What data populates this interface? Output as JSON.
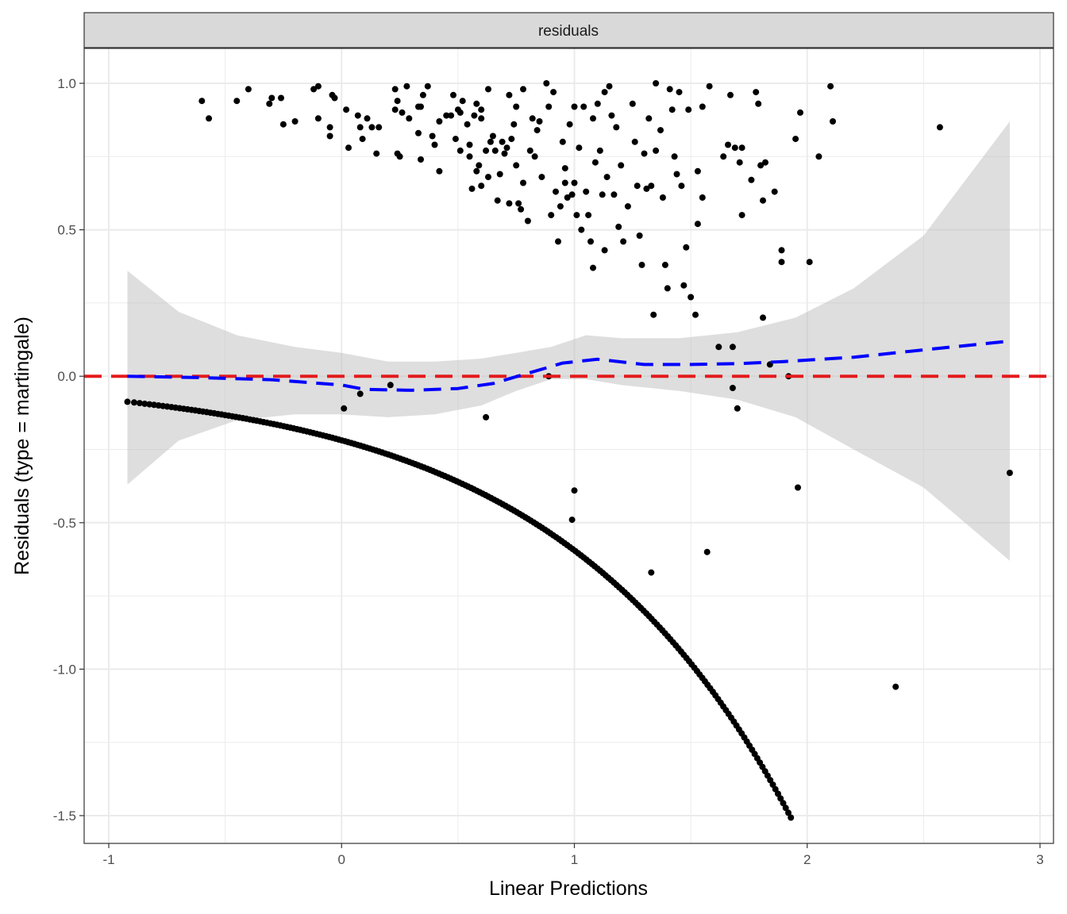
{
  "chart_data": {
    "type": "scatter",
    "title": "",
    "facet_label": "residuals",
    "xlabel": "Linear Predictions",
    "ylabel": "Residuals (type = martingale)",
    "xlim": [
      -1.1,
      3.05
    ],
    "ylim": [
      -1.6,
      1.12
    ],
    "x_ticks": [
      -1,
      0,
      1,
      2,
      3
    ],
    "x_tick_labels": [
      "-1",
      "0",
      "1",
      "2",
      "3"
    ],
    "y_ticks": [
      -1.5,
      -1.0,
      -0.5,
      0.0,
      0.5,
      1.0
    ],
    "y_tick_labels": [
      "-1.5",
      "-1.0",
      "-0.5",
      "0.0",
      "0.5",
      "1.0"
    ],
    "grid": true,
    "legend": "none",
    "colors": {
      "points": "#000000",
      "reference_line": "#e41a1c",
      "smooth_line": "#0000ff",
      "confidence_band": "#bebebe",
      "grid": "#ebebeb",
      "strip_fill": "#d9d9d9"
    },
    "reference_line": {
      "y": 0,
      "style": "dashed"
    },
    "smooth_curve": {
      "x": [
        -0.92,
        -0.6,
        -0.3,
        0.0,
        0.1,
        0.3,
        0.5,
        0.65,
        0.8,
        0.95,
        1.1,
        1.3,
        1.5,
        1.7,
        1.9,
        2.2,
        2.5,
        2.87
      ],
      "y": [
        0.0,
        -0.005,
        -0.012,
        -0.03,
        -0.045,
        -0.048,
        -0.042,
        -0.025,
        0.01,
        0.045,
        0.058,
        0.04,
        0.04,
        0.043,
        0.05,
        0.065,
        0.09,
        0.12
      ]
    },
    "confidence_band": {
      "x": [
        -0.92,
        -0.7,
        -0.45,
        -0.2,
        0.0,
        0.2,
        0.4,
        0.6,
        0.75,
        0.9,
        1.05,
        1.2,
        1.45,
        1.7,
        1.95,
        2.2,
        2.5,
        2.87
      ],
      "upper": [
        0.36,
        0.22,
        0.14,
        0.1,
        0.08,
        0.05,
        0.05,
        0.06,
        0.08,
        0.1,
        0.14,
        0.13,
        0.13,
        0.15,
        0.2,
        0.3,
        0.48,
        0.87
      ],
      "lower": [
        -0.37,
        -0.22,
        -0.15,
        -0.13,
        -0.13,
        -0.14,
        -0.13,
        -0.1,
        -0.05,
        -0.01,
        -0.01,
        -0.03,
        -0.05,
        -0.08,
        -0.14,
        -0.25,
        -0.38,
        -0.63
      ]
    },
    "points": {
      "lower_curve": {
        "x_min": -0.92,
        "x_max": 1.93,
        "count": 220,
        "formula": "y = exp(-1.52 + 1.0 * x) * -1 (approx. martingale residual for censored obs)"
      },
      "scattered": [
        [
          -0.6,
          0.94
        ],
        [
          -0.57,
          0.88
        ],
        [
          -0.45,
          0.94
        ],
        [
          -0.4,
          0.98
        ],
        [
          -0.3,
          0.95
        ],
        [
          -0.31,
          0.93
        ],
        [
          -0.26,
          0.95
        ],
        [
          -0.25,
          0.86
        ],
        [
          -0.2,
          0.87
        ],
        [
          -0.12,
          0.98
        ],
        [
          -0.1,
          0.99
        ],
        [
          -0.1,
          0.88
        ],
        [
          -0.05,
          0.85
        ],
        [
          -0.05,
          0.82
        ],
        [
          -0.04,
          0.96
        ],
        [
          -0.03,
          0.95
        ],
        [
          0.02,
          0.91
        ],
        [
          0.03,
          0.78
        ],
        [
          0.07,
          0.89
        ],
        [
          0.08,
          0.85
        ],
        [
          0.09,
          0.81
        ],
        [
          0.11,
          0.88
        ],
        [
          0.13,
          0.85
        ],
        [
          0.15,
          0.76
        ],
        [
          0.16,
          0.85
        ],
        [
          0.23,
          0.98
        ],
        [
          0.23,
          0.91
        ],
        [
          0.24,
          0.94
        ],
        [
          0.24,
          0.76
        ],
        [
          0.25,
          0.75
        ],
        [
          0.26,
          0.9
        ],
        [
          0.28,
          0.99
        ],
        [
          0.29,
          0.88
        ],
        [
          0.33,
          0.92
        ],
        [
          0.33,
          0.83
        ],
        [
          0.34,
          0.92
        ],
        [
          0.34,
          0.74
        ],
        [
          0.35,
          0.96
        ],
        [
          0.37,
          0.99
        ],
        [
          0.39,
          0.82
        ],
        [
          0.4,
          0.79
        ],
        [
          0.42,
          0.7
        ],
        [
          0.42,
          0.87
        ],
        [
          0.45,
          0.89
        ],
        [
          0.47,
          0.89
        ],
        [
          0.48,
          0.96
        ],
        [
          0.49,
          0.81
        ],
        [
          0.5,
          0.91
        ],
        [
          0.51,
          0.77
        ],
        [
          0.51,
          0.9
        ],
        [
          0.52,
          0.94
        ],
        [
          0.54,
          0.86
        ],
        [
          0.55,
          0.79
        ],
        [
          0.55,
          0.75
        ],
        [
          0.56,
          0.64
        ],
        [
          0.57,
          0.89
        ],
        [
          0.58,
          0.7
        ],
        [
          0.58,
          0.93
        ],
        [
          0.59,
          0.72
        ],
        [
          0.6,
          0.88
        ],
        [
          0.6,
          0.65
        ],
        [
          0.6,
          0.91
        ],
        [
          0.62,
          0.77
        ],
        [
          0.63,
          0.98
        ],
        [
          0.63,
          0.68
        ],
        [
          0.64,
          0.8
        ],
        [
          0.65,
          0.82
        ],
        [
          0.66,
          0.77
        ],
        [
          0.67,
          0.6
        ],
        [
          0.68,
          0.69
        ],
        [
          0.69,
          0.8
        ],
        [
          0.7,
          0.76
        ],
        [
          0.71,
          0.78
        ],
        [
          0.72,
          0.96
        ],
        [
          0.72,
          0.59
        ],
        [
          0.73,
          0.81
        ],
        [
          0.74,
          0.86
        ],
        [
          0.75,
          0.92
        ],
        [
          0.75,
          0.72
        ],
        [
          0.76,
          0.59
        ],
        [
          0.77,
          0.57
        ],
        [
          0.78,
          0.98
        ],
        [
          0.78,
          0.66
        ],
        [
          0.8,
          0.53
        ],
        [
          0.81,
          0.77
        ],
        [
          0.82,
          0.88
        ],
        [
          0.83,
          0.75
        ],
        [
          0.84,
          0.84
        ],
        [
          0.85,
          0.87
        ],
        [
          0.86,
          0.68
        ],
        [
          0.88,
          1.0
        ],
        [
          0.89,
          0.92
        ],
        [
          0.9,
          0.55
        ],
        [
          0.91,
          0.97
        ],
        [
          0.92,
          0.63
        ],
        [
          0.93,
          0.46
        ],
        [
          0.94,
          0.58
        ],
        [
          0.95,
          0.8
        ],
        [
          0.96,
          0.71
        ],
        [
          0.96,
          0.66
        ],
        [
          0.97,
          0.61
        ],
        [
          0.98,
          0.86
        ],
        [
          0.99,
          0.62
        ],
        [
          1.0,
          0.92
        ],
        [
          1.0,
          0.66
        ],
        [
          1.01,
          0.55
        ],
        [
          1.02,
          0.78
        ],
        [
          1.03,
          0.5
        ],
        [
          1.04,
          0.92
        ],
        [
          1.05,
          0.63
        ],
        [
          1.06,
          0.55
        ],
        [
          1.07,
          0.46
        ],
        [
          1.08,
          0.88
        ],
        [
          1.08,
          0.37
        ],
        [
          1.09,
          0.73
        ],
        [
          1.1,
          0.93
        ],
        [
          1.11,
          0.77
        ],
        [
          1.12,
          0.62
        ],
        [
          1.13,
          0.43
        ],
        [
          1.13,
          0.97
        ],
        [
          1.14,
          0.68
        ],
        [
          1.15,
          0.99
        ],
        [
          1.16,
          0.89
        ],
        [
          1.17,
          0.62
        ],
        [
          1.18,
          0.85
        ],
        [
          1.19,
          0.51
        ],
        [
          1.2,
          0.72
        ],
        [
          1.21,
          0.46
        ],
        [
          1.23,
          0.58
        ],
        [
          1.25,
          0.93
        ],
        [
          1.26,
          0.8
        ],
        [
          1.27,
          0.65
        ],
        [
          1.28,
          0.48
        ],
        [
          1.29,
          0.38
        ],
        [
          1.3,
          0.76
        ],
        [
          1.31,
          0.64
        ],
        [
          1.32,
          0.88
        ],
        [
          1.33,
          0.65
        ],
        [
          1.34,
          0.21
        ],
        [
          1.35,
          1.0
        ],
        [
          1.35,
          0.77
        ],
        [
          1.37,
          0.84
        ],
        [
          1.38,
          0.61
        ],
        [
          1.39,
          0.38
        ],
        [
          1.4,
          0.3
        ],
        [
          1.41,
          0.98
        ],
        [
          1.42,
          0.91
        ],
        [
          1.43,
          0.75
        ],
        [
          1.44,
          0.69
        ],
        [
          1.45,
          0.97
        ],
        [
          1.46,
          0.65
        ],
        [
          1.47,
          0.31
        ],
        [
          1.48,
          0.44
        ],
        [
          1.49,
          0.91
        ],
        [
          1.5,
          0.27
        ],
        [
          1.52,
          0.21
        ],
        [
          1.53,
          0.52
        ],
        [
          1.53,
          0.7
        ],
        [
          1.55,
          0.61
        ],
        [
          1.55,
          0.92
        ],
        [
          1.58,
          0.99
        ],
        [
          1.62,
          0.1
        ],
        [
          1.64,
          0.75
        ],
        [
          1.66,
          0.79
        ],
        [
          1.67,
          0.96
        ],
        [
          1.68,
          0.1
        ],
        [
          1.69,
          0.78
        ],
        [
          1.71,
          0.73
        ],
        [
          1.72,
          0.55
        ],
        [
          1.72,
          0.78
        ],
        [
          1.76,
          0.67
        ],
        [
          1.78,
          0.97
        ],
        [
          1.79,
          0.93
        ],
        [
          1.8,
          0.72
        ],
        [
          1.81,
          0.2
        ],
        [
          1.81,
          0.6
        ],
        [
          1.82,
          0.73
        ],
        [
          1.84,
          0.04
        ],
        [
          1.86,
          0.63
        ],
        [
          1.89,
          0.43
        ],
        [
          1.89,
          0.39
        ],
        [
          1.92,
          0.0
        ],
        [
          1.95,
          0.81
        ],
        [
          1.97,
          0.9
        ],
        [
          2.01,
          0.39
        ],
        [
          2.05,
          0.75
        ],
        [
          2.1,
          0.99
        ],
        [
          2.11,
          0.87
        ],
        [
          2.57,
          0.85
        ],
        [
          0.01,
          -0.11
        ],
        [
          0.08,
          -0.06
        ],
        [
          0.21,
          -0.03
        ],
        [
          0.62,
          -0.14
        ],
        [
          0.89,
          0.0
        ],
        [
          0.99,
          -0.49
        ],
        [
          1.0,
          -0.39
        ],
        [
          1.33,
          -0.67
        ],
        [
          1.57,
          -0.6
        ],
        [
          1.68,
          -0.04
        ],
        [
          1.7,
          -0.11
        ],
        [
          1.96,
          -0.38
        ],
        [
          2.38,
          -1.06
        ],
        [
          2.87,
          -0.33
        ]
      ]
    }
  }
}
